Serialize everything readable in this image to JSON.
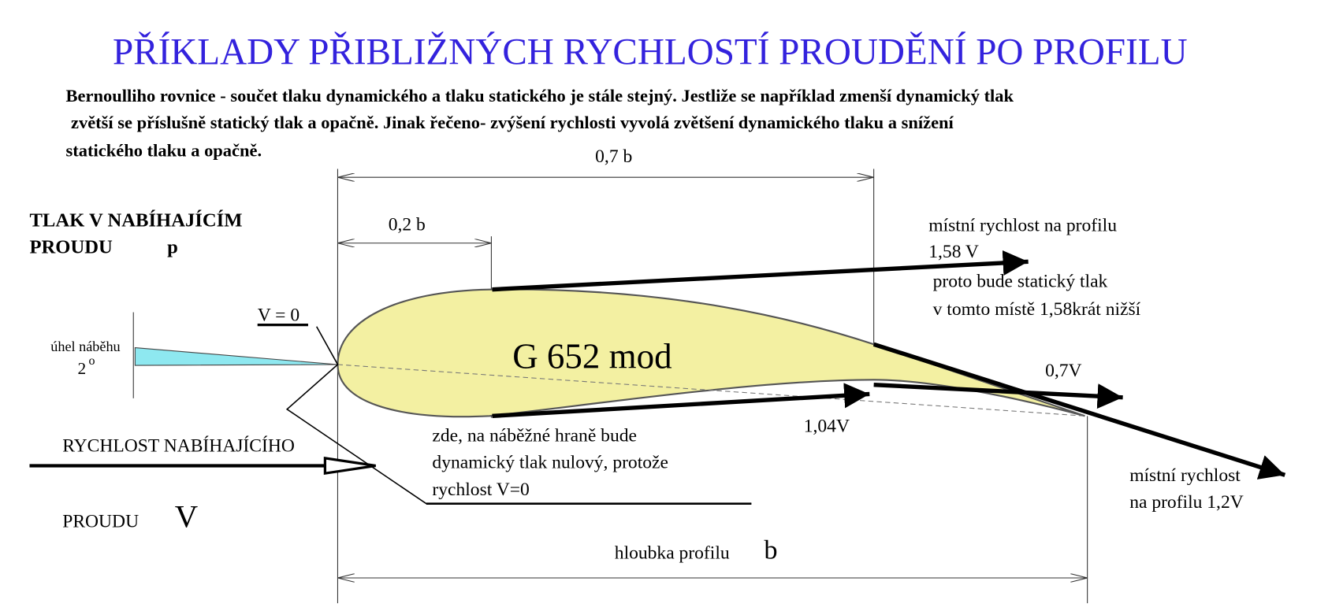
{
  "title": "PŘÍKLADY PŘIBLIŽNÝCH RYCHLOSTÍ PROUDĚNÍ PO PROFILU",
  "description": [
    "Bernoulliho rovnice - součet tlaku dynamického a tlaku statického je stále stejný. Jestliže se například zmenší dynamický tlak",
    "zvětší se příslušně statický tlak a opačně. Jinak řečeno- zvýšení rychlosti vyvolá zvětšení dynamického tlaku a snížení",
    "statického  tlaku a opačně."
  ],
  "dimensions": {
    "d07": "0,7 b",
    "d02": "0,2 b",
    "depth": "hloubka profilu",
    "depth_symbol": "b"
  },
  "pressure": {
    "line1": "TLAK V NABÍHAJÍCÍM",
    "line2": "PROUDU",
    "symbol": "p"
  },
  "stagnation": "V = 0",
  "angle": {
    "label": "úhel náběhu",
    "value": "2",
    "unit": "o"
  },
  "freestream": {
    "line1": "RYCHLOST NABÍHAJÍCÍHO",
    "line2": "PROUDU",
    "symbol": "V"
  },
  "profile_name": "G 652 mod",
  "upper_note": [
    "místní rychlost na profilu",
    "1,58 V",
    "proto bude statický tlak",
    "v tomto místě 1,58krát nižší"
  ],
  "trailing_lower": "0,7V",
  "lower_speed": "1,04V",
  "leading_note": [
    "zde, na náběžné hraně bude",
    "dynamický tlak nulový, protože",
    "rychlost V=0"
  ],
  "trailing_upper_note": [
    "místní rychlost",
    "na profilu 1,2V"
  ]
}
